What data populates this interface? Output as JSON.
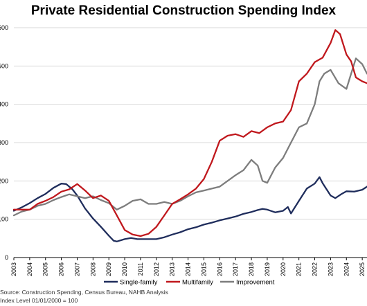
{
  "chart_data": {
    "type": "line",
    "title": "Private Residential Construction Spending Index",
    "xlabel": "",
    "ylabel": "",
    "xlim": [
      2003,
      2025.3
    ],
    "ylim": [
      0,
      600
    ],
    "grid": "horizontal",
    "legend_position": "bottom",
    "x_ticks": [
      "2003",
      "2004",
      "2005",
      "2006",
      "2007",
      "2008",
      "2009",
      "2010",
      "2011",
      "2012",
      "2013",
      "2014",
      "2015",
      "2016",
      "2017",
      "2018",
      "2019",
      "2020",
      "2021",
      "2022",
      "2023",
      "2024",
      "2025"
    ],
    "y_ticks": [
      "0",
      "100",
      "200",
      "300",
      "400",
      "500",
      "600"
    ],
    "series": [
      {
        "name": "Single-family",
        "color": "#1f2d5c",
        "x": [
          2003.0,
          2003.5,
          2004.0,
          2004.5,
          2005.0,
          2005.5,
          2006.0,
          2006.3,
          2006.7,
          2007.0,
          2007.5,
          2008.0,
          2008.5,
          2009.0,
          2009.3,
          2009.5,
          2010.0,
          2010.4,
          2010.8,
          2011.5,
          2012.0,
          2012.5,
          2013.0,
          2013.5,
          2014.0,
          2014.5,
          2015.0,
          2015.5,
          2016.0,
          2016.5,
          2017.0,
          2017.5,
          2018.0,
          2018.4,
          2018.7,
          2019.0,
          2019.5,
          2020.0,
          2020.3,
          2020.5,
          2021.0,
          2021.5,
          2022.0,
          2022.3,
          2022.5,
          2023.0,
          2023.3,
          2023.7,
          2024.0,
          2024.5,
          2025.0,
          2025.3
        ],
        "y": [
          122,
          131,
          142,
          155,
          166,
          182,
          193,
          192,
          178,
          162,
          128,
          102,
          80,
          57,
          44,
          42,
          48,
          51,
          48,
          48,
          48,
          53,
          60,
          66,
          74,
          79,
          86,
          91,
          97,
          102,
          107,
          114,
          119,
          124,
          127,
          125,
          118,
          122,
          132,
          115,
          148,
          180,
          193,
          210,
          194,
          162,
          155,
          166,
          173,
          172,
          177,
          185
        ]
      },
      {
        "name": "Multifamily",
        "color": "#c0181d",
        "x": [
          2003.0,
          2004.0,
          2004.5,
          2005.0,
          2005.5,
          2006.0,
          2006.5,
          2007.0,
          2007.5,
          2008.0,
          2008.5,
          2009.0,
          2009.5,
          2010.0,
          2010.5,
          2011.0,
          2011.5,
          2012.0,
          2012.5,
          2013.0,
          2013.5,
          2014.0,
          2014.5,
          2015.0,
          2015.5,
          2016.0,
          2016.5,
          2017.0,
          2017.5,
          2018.0,
          2018.5,
          2019.0,
          2019.5,
          2020.0,
          2020.5,
          2021.0,
          2021.5,
          2022.0,
          2022.5,
          2023.0,
          2023.3,
          2023.6,
          2024.0,
          2024.3,
          2024.6,
          2025.0,
          2025.3
        ],
        "y": [
          125,
          125,
          140,
          148,
          158,
          172,
          178,
          192,
          175,
          155,
          162,
          148,
          110,
          72,
          60,
          56,
          62,
          80,
          110,
          140,
          152,
          165,
          180,
          205,
          250,
          305,
          318,
          322,
          315,
          330,
          325,
          340,
          350,
          355,
          385,
          460,
          480,
          510,
          522,
          560,
          594,
          583,
          530,
          512,
          470,
          460,
          455
        ]
      },
      {
        "name": "Improvement",
        "color": "#7d7d7d",
        "x": [
          2003.0,
          2003.5,
          2004.0,
          2004.5,
          2005.0,
          2005.5,
          2006.0,
          2006.5,
          2007.0,
          2007.5,
          2008.0,
          2008.5,
          2009.0,
          2009.5,
          2010.0,
          2010.5,
          2011.0,
          2011.5,
          2012.0,
          2012.5,
          2013.0,
          2013.5,
          2014.0,
          2014.5,
          2015.0,
          2015.5,
          2016.0,
          2016.5,
          2017.0,
          2017.5,
          2018.0,
          2018.4,
          2018.7,
          2019.0,
          2019.5,
          2020.0,
          2020.5,
          2021.0,
          2021.5,
          2022.0,
          2022.3,
          2022.6,
          2023.0,
          2023.5,
          2024.0,
          2024.3,
          2024.6,
          2025.0,
          2025.3
        ],
        "y": [
          110,
          120,
          125,
          135,
          140,
          150,
          158,
          165,
          160,
          155,
          160,
          150,
          142,
          125,
          135,
          148,
          152,
          140,
          140,
          145,
          140,
          148,
          160,
          170,
          175,
          180,
          185,
          200,
          215,
          228,
          255,
          240,
          200,
          195,
          235,
          260,
          300,
          340,
          350,
          400,
          460,
          480,
          490,
          455,
          440,
          480,
          520,
          505,
          480
        ]
      }
    ],
    "footnotes": [
      "Source: Construction Spending, Census Bureau, NAHB Analysis",
      "Index Level 01/01/2000 = 100"
    ]
  }
}
